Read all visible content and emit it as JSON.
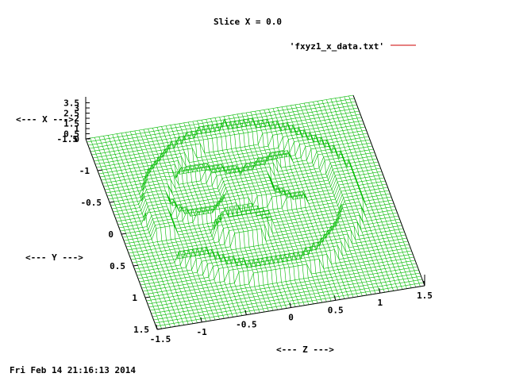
{
  "chart_data": {
    "type": "surface",
    "title": "Slice X = 0.0",
    "legend": {
      "label": "'fxyz1_x_data.txt'",
      "color": "#cc0000",
      "placement": "top-right"
    },
    "surface_color": "#00bb00",
    "xlabel": "<--- Z --->",
    "ylabel": "<--- Y --->",
    "zlabel": "<--- X --->",
    "x_ticks": [
      "-1.5",
      "-1",
      "-0.5",
      "0",
      "0.5",
      "1",
      "1.5"
    ],
    "y_ticks": [
      "-1.5",
      "-1",
      "-0.5",
      "0",
      "0.5",
      "1",
      "1.5"
    ],
    "z_ticks": [
      "0",
      "0.5",
      "1",
      "1.5",
      "2",
      "2.5",
      "3",
      "3.5"
    ],
    "xlim": [
      -1.5,
      1.5
    ],
    "ylim": [
      -1.5,
      1.5
    ],
    "zlim": [
      0,
      3.5
    ],
    "grid_resolution": 61,
    "surface_shape": {
      "description_values": "cross-section of a 3D glyph: outer ring radius 1.2, inner ring radius 0.95, height ~1; inner figure-eight loop; small blob near z=-0.2,y=0.2",
      "outer_ring_radius": [
        0.95,
        1.2
      ],
      "ring_height": 1.0,
      "ring_center": [
        0.0,
        -0.1
      ]
    }
  },
  "timestamp": "Fri Feb 14 21:16:13 2014"
}
